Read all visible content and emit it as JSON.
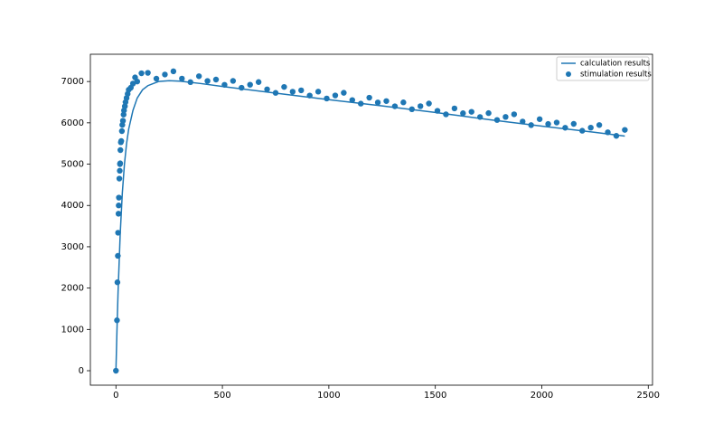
{
  "chart_data": {
    "type": "line",
    "legend": "upper right",
    "xlim": [
      -120,
      2520
    ],
    "ylim": [
      -350,
      7660
    ],
    "xticks": [
      0,
      500,
      1000,
      1500,
      2000,
      2500
    ],
    "yticks": [
      0,
      1000,
      2000,
      3000,
      4000,
      5000,
      6000,
      7000
    ],
    "series": [
      {
        "name": "calculation results",
        "type": "line",
        "color": "#1f77b4",
        "x": [
          0,
          5,
          10,
          20,
          30,
          40,
          50,
          60,
          80,
          100,
          125,
          150,
          200,
          250,
          300,
          400,
          500,
          750,
          1000,
          1250,
          1500,
          1750,
          2000,
          2250,
          2390
        ],
        "values": [
          0,
          1000,
          1900,
          3300,
          4300,
          5000,
          5500,
          5850,
          6300,
          6600,
          6800,
          6900,
          7000,
          7020,
          7010,
          6950,
          6880,
          6720,
          6560,
          6410,
          6250,
          6080,
          5920,
          5770,
          5680
        ]
      },
      {
        "name": "stimulation results",
        "type": "scatter",
        "color": "#1f77b4",
        "x": [
          0,
          5,
          7,
          9,
          10,
          12,
          13,
          14,
          16,
          18,
          19,
          20,
          21,
          23,
          25,
          28,
          30,
          33,
          36,
          38,
          42,
          45,
          50,
          55,
          60,
          70,
          80,
          90,
          100,
          120,
          150,
          190,
          230,
          270,
          310,
          350,
          390,
          430,
          470,
          510,
          550,
          590,
          630,
          670,
          710,
          750,
          790,
          830,
          870,
          910,
          950,
          990,
          1030,
          1070,
          1110,
          1150,
          1190,
          1230,
          1270,
          1310,
          1350,
          1390,
          1430,
          1470,
          1510,
          1550,
          1590,
          1630,
          1670,
          1710,
          1750,
          1790,
          1830,
          1870,
          1910,
          1950,
          1990,
          2030,
          2070,
          2110,
          2150,
          2190,
          2230,
          2270,
          2310,
          2350,
          2390
        ],
        "values": [
          0,
          1220,
          2140,
          2780,
          3340,
          3800,
          4000,
          4190,
          4650,
          4840,
          5000,
          5020,
          5340,
          5530,
          5560,
          5800,
          5950,
          6050,
          6200,
          6300,
          6400,
          6500,
          6600,
          6700,
          6800,
          6850,
          6950,
          7100,
          7000,
          7200,
          7210,
          7070,
          7170,
          7247,
          7071,
          6985,
          7129,
          7013,
          7047,
          6921,
          7015,
          6849,
          6923,
          6987,
          6811,
          6725,
          6869,
          6753,
          6787,
          6661,
          6755,
          6589,
          6663,
          6727,
          6551,
          6465,
          6609,
          6493,
          6527,
          6401,
          6495,
          6329,
          6403,
          6467,
          6291,
          6205,
          6349,
          6233,
          6267,
          6141,
          6235,
          6069,
          6143,
          6207,
          6031,
          5945,
          6089,
          5973,
          6007,
          5881,
          5975,
          5809,
          5883,
          5947,
          5771,
          5685,
          5829
        ]
      }
    ]
  }
}
